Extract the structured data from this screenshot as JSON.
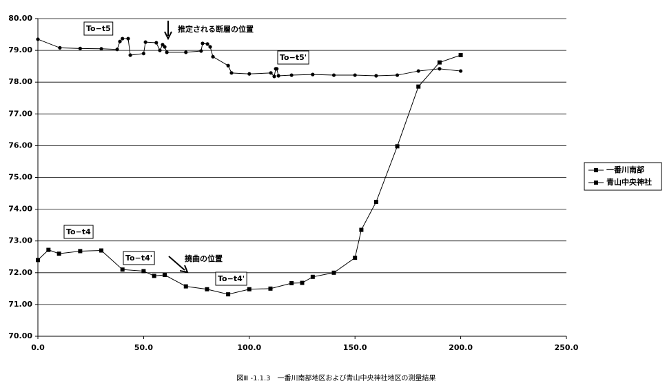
{
  "chart_data": {
    "type": "line",
    "caption": "図Ⅲ -1.1.3　一番川南部地区および青山中央神社地区の測量結果",
    "xlim": [
      0,
      250
    ],
    "xticks": [
      {
        "value": 0,
        "label": "0.0"
      },
      {
        "value": 50,
        "label": "50.0"
      },
      {
        "value": 100,
        "label": "100.0"
      },
      {
        "value": 150,
        "label": "150.0"
      },
      {
        "value": 200,
        "label": "200.0"
      },
      {
        "value": 250,
        "label": "250.0"
      }
    ],
    "ylim": [
      70,
      80
    ],
    "yticks": [
      {
        "value": 70,
        "label": "70.00"
      },
      {
        "value": 71,
        "label": "71.00"
      },
      {
        "value": 72,
        "label": "72.00"
      },
      {
        "value": 73,
        "label": "73.00"
      },
      {
        "value": 74,
        "label": "74.00"
      },
      {
        "value": 75,
        "label": "75.00"
      },
      {
        "value": 76,
        "label": "76.00"
      },
      {
        "value": 77,
        "label": "77.00"
      },
      {
        "value": 78,
        "label": "78.00"
      },
      {
        "value": 79,
        "label": "79.00"
      },
      {
        "value": 80,
        "label": "80.00"
      }
    ],
    "grid": true,
    "legend": "right",
    "series": [
      {
        "name": "一番川南部",
        "color": "#000000",
        "marker": "square",
        "x": [
          0,
          5,
          10,
          20,
          30,
          40,
          50,
          55,
          60,
          70,
          80,
          90,
          100,
          110,
          120,
          125,
          130,
          140,
          150,
          153,
          160,
          170,
          180,
          190,
          200
        ],
        "values": [
          72.4,
          72.72,
          72.6,
          72.68,
          72.7,
          72.1,
          72.05,
          71.9,
          71.93,
          71.57,
          71.48,
          71.32,
          71.48,
          71.5,
          71.67,
          71.68,
          71.87,
          72.0,
          72.47,
          73.35,
          74.23,
          75.98,
          77.86,
          78.62,
          78.85
        ]
      },
      {
        "name": "青山中央神社",
        "color": "#000000",
        "marker": "circle",
        "x": [
          0,
          10.4,
          20,
          30,
          37.5,
          38.8,
          40,
          42.7,
          43.7,
          50,
          50.9,
          56,
          57.7,
          59,
          60,
          61,
          70,
          77.2,
          77.9,
          80.2,
          81.5,
          82.8,
          90,
          91.6,
          100,
          110.2,
          111.8,
          112.5,
          113,
          113.8,
          120,
          130,
          140,
          150,
          160,
          170,
          180,
          190,
          200
        ],
        "values": [
          79.35,
          79.08,
          79.06,
          79.05,
          79.03,
          79.28,
          79.37,
          79.37,
          78.85,
          78.9,
          79.26,
          79.24,
          79.0,
          79.18,
          79.11,
          78.94,
          78.94,
          78.98,
          79.22,
          79.2,
          79.11,
          78.8,
          78.52,
          78.29,
          78.26,
          78.29,
          78.18,
          78.42,
          78.42,
          78.2,
          78.22,
          78.24,
          78.22,
          78.22,
          78.2,
          78.22,
          78.35,
          78.42,
          78.35
        ]
      }
    ],
    "annotations": [
      "To−t5",
      "推定される断層の位置",
      "To−t5'",
      "To−t4",
      "To−t4'",
      "撓曲の位置",
      "To−t4'"
    ]
  }
}
